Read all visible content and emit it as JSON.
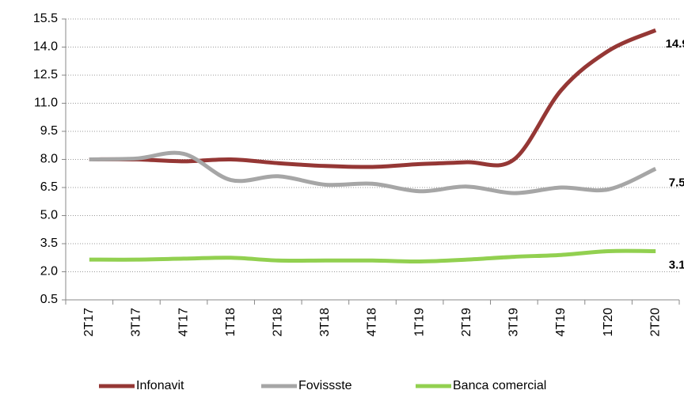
{
  "chart_data": {
    "type": "line",
    "categories": [
      "2T17",
      "3T17",
      "4T17",
      "1T18",
      "2T18",
      "3T18",
      "4T18",
      "1T19",
      "2T19",
      "3T19",
      "4T19",
      "1T20",
      "2T20"
    ],
    "series": [
      {
        "name": "Infonavit",
        "color": "#953735",
        "values": [
          8.0,
          8.0,
          7.9,
          8.0,
          7.8,
          7.65,
          7.6,
          7.75,
          7.85,
          8.0,
          11.7,
          13.8,
          14.9
        ]
      },
      {
        "name": "Fovissste",
        "color": "#a6a6a6",
        "values": [
          8.0,
          8.05,
          8.3,
          6.9,
          7.1,
          6.65,
          6.7,
          6.3,
          6.55,
          6.2,
          6.5,
          6.4,
          7.5
        ]
      },
      {
        "name": "Banca comercial",
        "color": "#92d050",
        "values": [
          2.65,
          2.65,
          2.7,
          2.75,
          2.6,
          2.6,
          2.6,
          2.55,
          2.65,
          2.8,
          2.9,
          3.1,
          3.1
        ]
      }
    ],
    "ylim": [
      0.5,
      15.5
    ],
    "yticks": [
      0.5,
      {
        "value": 2,
        "label": "2.0"
      },
      3.5,
      {
        "value": 5,
        "label": "5.0"
      },
      6.5,
      {
        "value": 8,
        "label": "8.0"
      },
      9.5,
      {
        "value": 11,
        "label": "11.0"
      },
      12.5,
      {
        "value": 14,
        "label": "14.0"
      },
      15.5
    ],
    "grid": true,
    "legend": "bottom"
  }
}
